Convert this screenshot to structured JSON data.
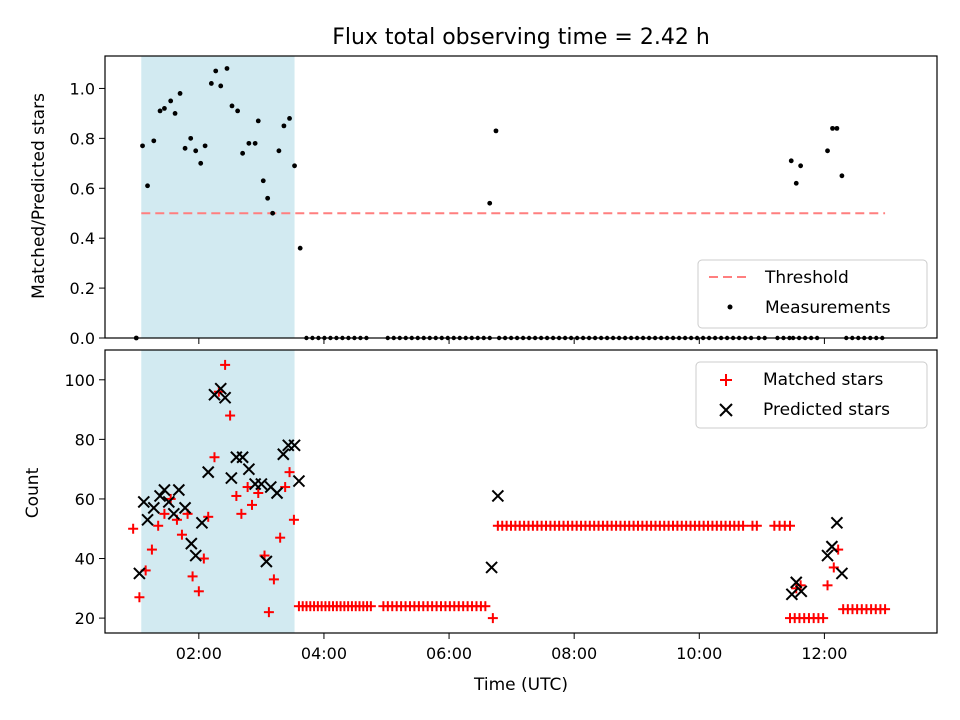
{
  "chart_data": [
    {
      "type": "scatter",
      "title": "Flux total observing time = 2.42 h",
      "ylabel": "Matched/Predicted stars",
      "ylim": [
        0,
        1.13
      ],
      "yticks": [
        "0.0",
        "0.2",
        "0.4",
        "0.6",
        "0.8",
        "1.0"
      ],
      "xlim_hours": [
        0.5,
        13.8
      ],
      "shaded_span_hours": [
        1.08,
        3.53
      ],
      "shade_color": "#add8e6",
      "threshold": {
        "name": "Threshold",
        "value": 0.5,
        "x_range_hours": [
          1.08,
          12.97
        ],
        "color": "#ff7f7f",
        "style": "dashed"
      },
      "legend": [
        "Threshold",
        "Measurements"
      ],
      "legend_position": "lower right",
      "series": [
        {
          "name": "Measurements",
          "color": "#000000",
          "marker": "dot",
          "x_hours": [
            1.0,
            1.1,
            1.18,
            1.28,
            1.38,
            1.45,
            1.55,
            1.62,
            1.7,
            1.78,
            1.87,
            1.95,
            2.03,
            2.1,
            2.2,
            2.27,
            2.35,
            2.45,
            2.53,
            2.62,
            2.7,
            2.8,
            2.9,
            2.95,
            3.03,
            3.1,
            3.18,
            3.28,
            3.36,
            3.45,
            3.53,
            3.62,
            6.65,
            6.75,
            11.47,
            11.55,
            11.62,
            12.05,
            12.13,
            12.2,
            12.28
          ],
          "y": [
            0.0,
            0.77,
            0.61,
            0.79,
            0.91,
            0.92,
            0.95,
            0.9,
            0.98,
            0.76,
            0.8,
            0.75,
            0.7,
            0.77,
            1.02,
            1.07,
            1.01,
            1.08,
            0.93,
            0.91,
            0.74,
            0.78,
            0.78,
            0.87,
            0.63,
            0.56,
            0.5,
            0.75,
            0.85,
            0.88,
            0.69,
            0.36,
            0.54,
            0.83,
            0.71,
            0.62,
            0.69,
            0.75,
            0.84,
            0.84,
            0.65
          ],
          "zero_runs_hours": [
            [
              3.72,
              4.73
            ],
            [
              5.02,
              6.68
            ],
            [
              6.8,
              10.87
            ],
            [
              10.95,
              11.05
            ],
            [
              11.25,
              11.45
            ],
            [
              11.5,
              11.95
            ],
            [
              12.35,
              12.97
            ]
          ]
        }
      ]
    },
    {
      "type": "scatter",
      "xlabel": "Time (UTC)",
      "ylabel": "Count",
      "ylim": [
        15,
        110
      ],
      "yticks": [
        "20",
        "40",
        "60",
        "80",
        "100"
      ],
      "xlim_hours": [
        0.5,
        13.8
      ],
      "xticks_hours": [
        2,
        4,
        6,
        8,
        10,
        12
      ],
      "xticks": [
        "02:00",
        "04:00",
        "06:00",
        "08:00",
        "10:00",
        "12:00"
      ],
      "shaded_span_hours": [
        1.08,
        3.53
      ],
      "shade_color": "#add8e6",
      "legend": [
        "Matched stars",
        "Predicted stars"
      ],
      "legend_position": "upper right",
      "series": [
        {
          "name": "Matched stars",
          "color": "#ff0000",
          "marker": "plus",
          "x_hours": [
            0.95,
            1.05,
            1.15,
            1.25,
            1.35,
            1.45,
            1.55,
            1.65,
            1.73,
            1.82,
            1.9,
            2.0,
            2.08,
            2.15,
            2.25,
            2.32,
            2.42,
            2.5,
            2.6,
            2.68,
            2.78,
            2.85,
            2.95,
            3.05,
            3.12,
            3.2,
            3.3,
            3.38,
            3.45,
            3.52,
            6.7,
            11.55,
            11.62,
            12.05,
            12.15,
            12.22
          ],
          "y": [
            50,
            27,
            36,
            43,
            51,
            55,
            60,
            53,
            48,
            55,
            34,
            29,
            40,
            54,
            74,
            96,
            105,
            88,
            61,
            55,
            64,
            58,
            62,
            41,
            22,
            33,
            47,
            64,
            69,
            53,
            20,
            30,
            31,
            31,
            37,
            43
          ],
          "runs": [
            {
              "x_range_hours": [
                3.6,
                4.75
              ],
              "count": 20,
              "y": 24
            },
            {
              "x_range_hours": [
                4.95,
                6.58
              ],
              "count": 24,
              "y": 24
            },
            {
              "x_range_hours": [
                6.78,
                10.7
              ],
              "count": 57,
              "y": 51
            },
            {
              "x_range_hours": [
                10.85,
                10.92
              ],
              "count": 2,
              "y": 51
            },
            {
              "x_range_hours": [
                11.2,
                11.45
              ],
              "count": 4,
              "y": 51
            },
            {
              "x_range_hours": [
                11.45,
                11.98
              ],
              "count": 8,
              "y": 20
            },
            {
              "x_range_hours": [
                12.3,
                12.97
              ],
              "count": 10,
              "y": 23
            }
          ]
        },
        {
          "name": "Predicted stars",
          "color": "#000000",
          "marker": "x",
          "x_hours": [
            1.05,
            1.12,
            1.18,
            1.28,
            1.38,
            1.45,
            1.52,
            1.6,
            1.68,
            1.78,
            1.88,
            1.95,
            2.05,
            2.15,
            2.25,
            2.35,
            2.42,
            2.52,
            2.6,
            2.7,
            2.8,
            2.9,
            3.0,
            3.08,
            3.15,
            3.25,
            3.35,
            3.43,
            3.53,
            3.6,
            6.68,
            6.78,
            11.48,
            11.55,
            11.63,
            12.05,
            12.12,
            12.2,
            12.28
          ],
          "y": [
            35,
            59,
            53,
            57,
            61,
            63,
            59,
            55,
            63,
            57,
            45,
            41,
            52,
            69,
            95,
            97,
            94,
            67,
            74,
            74,
            70,
            65,
            65,
            39,
            64,
            62,
            75,
            78,
            78,
            66,
            37,
            61,
            28,
            32,
            29,
            41,
            44,
            52,
            35
          ]
        }
      ]
    }
  ]
}
